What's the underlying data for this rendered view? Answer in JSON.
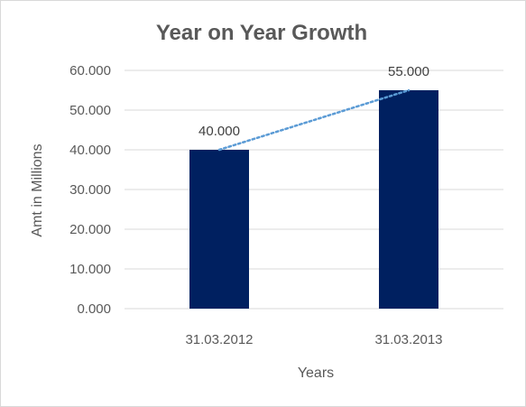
{
  "chart_data": {
    "type": "bar",
    "title": "Year on Year Growth",
    "xlabel": "Years",
    "ylabel": "Amt in Millions",
    "categories": [
      "31.03.2012",
      "31.03.2013"
    ],
    "values": [
      40,
      55
    ],
    "data_labels": [
      "40.000",
      "55.000"
    ],
    "ylim": [
      0,
      60
    ],
    "yticks": [
      0,
      10,
      20,
      30,
      40,
      50,
      60
    ],
    "ytick_labels": [
      "0.000",
      "10.000",
      "20.000",
      "30.000",
      "40.000",
      "50.000",
      "60.000"
    ],
    "grid": true,
    "legend": "none",
    "trendline": "linear",
    "colors": {
      "bar": "#002060",
      "trendline": "#5b9bd5",
      "grid": "#d9d9d9",
      "text": "#595959"
    }
  }
}
